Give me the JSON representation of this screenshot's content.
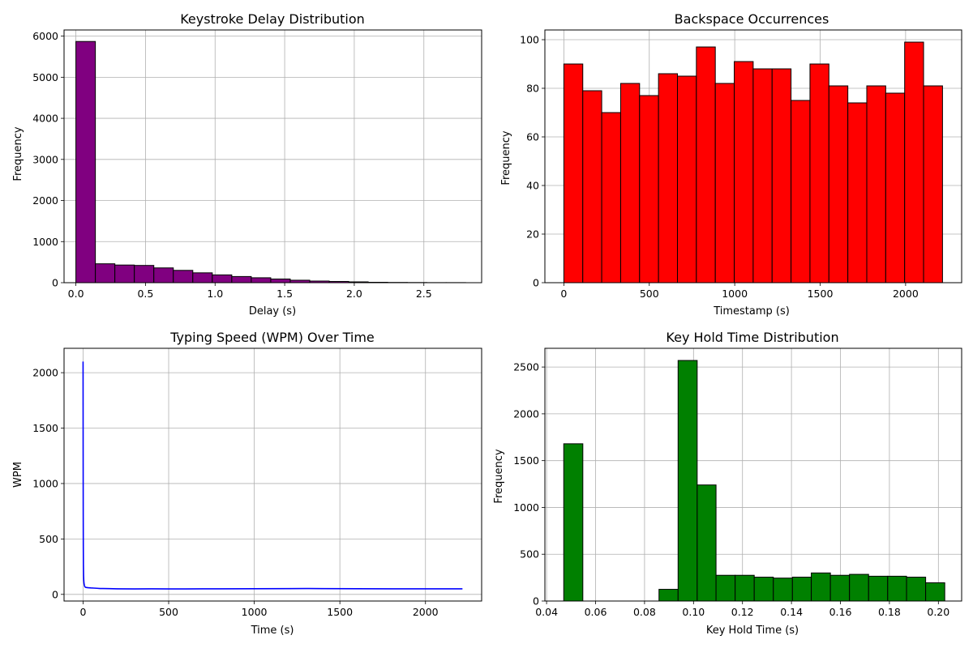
{
  "colors": {
    "purple": "#800080",
    "red": "#ff0000",
    "blue": "#0000ff",
    "green": "#008000",
    "edge": "#000000",
    "grid": "#b0b0b0"
  },
  "chart_data": [
    {
      "type": "bar",
      "subtype": "histogram",
      "title": "Keystroke Delay Distribution",
      "xlabel": "Delay (s)",
      "ylabel": "Frequency",
      "xlim": [
        -0.085,
        2.915
      ],
      "ylim": [
        0,
        6150
      ],
      "xticks": [
        0.0,
        0.5,
        1.0,
        1.5,
        2.0,
        2.5
      ],
      "xtick_labels": [
        "0.0",
        "0.5",
        "1.0",
        "1.5",
        "2.0",
        "2.5"
      ],
      "yticks": [
        0,
        1000,
        2000,
        3000,
        4000,
        5000,
        6000
      ],
      "ytick_labels": [
        "0",
        "1000",
        "2000",
        "3000",
        "4000",
        "5000",
        "6000"
      ],
      "bin_edges": [
        0.0,
        0.14,
        0.28,
        0.42,
        0.56,
        0.7,
        0.84,
        0.98,
        1.12,
        1.26,
        1.4,
        1.54,
        1.68,
        1.82,
        1.96,
        2.1,
        2.24,
        2.38,
        2.52,
        2.66,
        2.8
      ],
      "values": [
        5870,
        460,
        430,
        420,
        360,
        300,
        240,
        190,
        150,
        120,
        90,
        60,
        40,
        30,
        20,
        10,
        6,
        4,
        2,
        2
      ],
      "color": "#800080",
      "grid": true
    },
    {
      "type": "bar",
      "subtype": "histogram",
      "title": "Backspace Occurrences",
      "xlabel": "Timestamp (s)",
      "ylabel": "Frequency",
      "xlim": [
        -111,
        2328
      ],
      "ylim": [
        0,
        104
      ],
      "xticks": [
        0,
        500,
        1000,
        1500,
        2000
      ],
      "xtick_labels": [
        "0",
        "500",
        "1000",
        "1500",
        "2000"
      ],
      "yticks": [
        0,
        20,
        40,
        60,
        80,
        100
      ],
      "ytick_labels": [
        "0",
        "20",
        "40",
        "60",
        "80",
        "100"
      ],
      "bin_edges": [
        0,
        110.8,
        221.6,
        332.4,
        443.2,
        554,
        664.8,
        775.6,
        886.4,
        997.2,
        1108,
        1218.8,
        1329.6,
        1440.4,
        1551.2,
        1662,
        1772.8,
        1883.6,
        1994.4,
        2105.2,
        2216
      ],
      "values": [
        90,
        79,
        70,
        82,
        77,
        86,
        85,
        97,
        82,
        91,
        88,
        88,
        75,
        90,
        81,
        74,
        81,
        78,
        99,
        81
      ],
      "color": "#ff0000",
      "grid": true
    },
    {
      "type": "line",
      "title": "Typing Speed (WPM) Over Time",
      "xlabel": "Time (s)",
      "ylabel": "WPM",
      "xlim": [
        -111,
        2328
      ],
      "ylim": [
        -60,
        2220
      ],
      "xticks": [
        0,
        500,
        1000,
        1500,
        2000
      ],
      "xtick_labels": [
        "0",
        "500",
        "1000",
        "1500",
        "2000"
      ],
      "yticks": [
        0,
        500,
        1000,
        1500,
        2000
      ],
      "ytick_labels": [
        "0",
        "500",
        "1000",
        "1500",
        "2000"
      ],
      "x": [
        0,
        0.5,
        1,
        1.5,
        2,
        3,
        4,
        5,
        6,
        8,
        10,
        14,
        20,
        30,
        45,
        60,
        80,
        100,
        150,
        200,
        300,
        400,
        500,
        600,
        700,
        800,
        1000,
        1200,
        1300,
        1400,
        1600,
        1800,
        2000,
        2200,
        2216
      ],
      "series": [
        {
          "name": "",
          "values": [
            2100,
            1300,
            700,
            420,
            270,
            170,
            130,
            110,
            95,
            80,
            70,
            64,
            62,
            60,
            58,
            57,
            55,
            53,
            52,
            50,
            49,
            50,
            49,
            49,
            50,
            50,
            51,
            52,
            53,
            52,
            51,
            50,
            50,
            50,
            50
          ]
        }
      ],
      "color": "#0000ff",
      "grid": true
    },
    {
      "type": "bar",
      "subtype": "histogram",
      "title": "Key Hold Time Distribution",
      "xlabel": "Key Hold Time (s)",
      "ylabel": "Frequency",
      "xlim": [
        0.0393,
        0.2095
      ],
      "ylim": [
        0,
        2700
      ],
      "xticks": [
        0.04,
        0.06,
        0.08,
        0.1,
        0.12,
        0.14,
        0.16,
        0.18,
        0.2
      ],
      "xtick_labels": [
        "0.04",
        "0.06",
        "0.08",
        "0.10",
        "0.12",
        "0.14",
        "0.16",
        "0.18",
        "0.20"
      ],
      "yticks": [
        0,
        500,
        1000,
        1500,
        2000,
        2500
      ],
      "ytick_labels": [
        "0",
        "500",
        "1000",
        "1500",
        "2000",
        "2500"
      ],
      "bin_edges": [
        0.047,
        0.0548,
        0.0626,
        0.0703,
        0.0781,
        0.0859,
        0.0937,
        0.1015,
        0.1092,
        0.117,
        0.1248,
        0.1326,
        0.1404,
        0.1481,
        0.1559,
        0.1637,
        0.1715,
        0.1793,
        0.187,
        0.1948,
        0.2026
      ],
      "values": [
        1680,
        0,
        0,
        0,
        0,
        125,
        2570,
        1240,
        275,
        275,
        255,
        245,
        255,
        300,
        275,
        285,
        265,
        265,
        255,
        195
      ],
      "color": "#008000",
      "grid": true
    }
  ]
}
